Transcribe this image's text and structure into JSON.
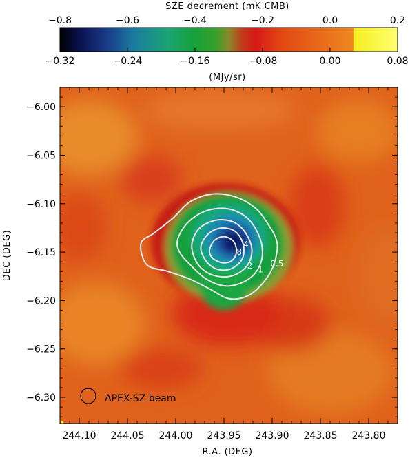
{
  "chart_data": {
    "type": "heatmap",
    "colorbar": {
      "top_label": "SZE decrement (mK CMB)",
      "top_ticks": [
        "-0.8",
        "-0.6",
        "-0.4",
        "-0.2",
        "0.0",
        "0.2"
      ],
      "top_range": [
        -0.8,
        0.2
      ],
      "bottom_ticks": [
        "-0.32",
        "-0.24",
        "-0.16",
        "-0.08",
        "0.00",
        "0.08"
      ],
      "bottom_range": [
        -0.32,
        0.08
      ],
      "bottom_label": "(MJy/sr)",
      "colors": [
        "#000000",
        "#0b1150",
        "#1a3c8a",
        "#1b7ca0",
        "#1aa572",
        "#17a03a",
        "#35a02c",
        "#8a8a28",
        "#c23a1a",
        "#d8181a",
        "#e24a12",
        "#e8661a",
        "#ee8a1e",
        "#f5ff20",
        "#ffff8a"
      ]
    },
    "xlabel": "R.A. (DEG)",
    "ylabel": "DEC (DEG)",
    "xlim": [
      244.12,
      243.77
    ],
    "ylim": [
      -6.327,
      -5.98
    ],
    "x_ticks": [
      "244.10",
      "244.05",
      "244.00",
      "243.95",
      "243.90",
      "243.85",
      "243.80"
    ],
    "y_ticks": [
      "-6.00",
      "-6.05",
      "-6.10",
      "-6.15",
      "-6.20",
      "-6.25",
      "-6.30"
    ],
    "cluster_center": {
      "ra": 243.955,
      "dec": -6.148
    },
    "contours": [
      {
        "label": "0.5",
        "level": 0.5,
        "points": [
          [
            244.036,
            -6.141
          ],
          [
            244.022,
            -6.13
          ],
          [
            244.003,
            -6.115
          ],
          [
            243.985,
            -6.098
          ],
          [
            243.962,
            -6.09
          ],
          [
            243.938,
            -6.093
          ],
          [
            243.918,
            -6.104
          ],
          [
            243.905,
            -6.12
          ],
          [
            243.895,
            -6.14
          ],
          [
            243.898,
            -6.162
          ],
          [
            243.908,
            -6.18
          ],
          [
            243.925,
            -6.195
          ],
          [
            243.945,
            -6.198
          ],
          [
            243.965,
            -6.188
          ],
          [
            243.985,
            -6.178
          ],
          [
            244.008,
            -6.17
          ],
          [
            244.03,
            -6.163
          ]
        ]
      },
      {
        "label": "1",
        "level": 1,
        "points": [
          [
            243.998,
            -6.137
          ],
          [
            243.988,
            -6.12
          ],
          [
            243.97,
            -6.108
          ],
          [
            243.948,
            -6.105
          ],
          [
            243.928,
            -6.113
          ],
          [
            243.915,
            -6.13
          ],
          [
            243.91,
            -6.15
          ],
          [
            243.915,
            -6.168
          ],
          [
            243.928,
            -6.18
          ],
          [
            243.948,
            -6.185
          ],
          [
            243.968,
            -6.178
          ],
          [
            243.985,
            -6.163
          ],
          [
            243.996,
            -6.15
          ]
        ]
      },
      {
        "label": "2",
        "level": 2,
        "points": [
          [
            243.983,
            -6.14
          ],
          [
            243.975,
            -6.125
          ],
          [
            243.958,
            -6.117
          ],
          [
            243.94,
            -6.119
          ],
          [
            243.927,
            -6.131
          ],
          [
            243.921,
            -6.148
          ],
          [
            243.926,
            -6.164
          ],
          [
            243.94,
            -6.174
          ],
          [
            243.957,
            -6.175
          ],
          [
            243.972,
            -6.168
          ],
          [
            243.981,
            -6.155
          ]
        ]
      },
      {
        "label": "4",
        "level": 4,
        "points": [
          [
            243.974,
            -6.145
          ],
          [
            243.966,
            -6.131
          ],
          [
            243.952,
            -6.125
          ],
          [
            243.938,
            -6.129
          ],
          [
            243.93,
            -6.142
          ],
          [
            243.931,
            -6.157
          ],
          [
            243.942,
            -6.167
          ],
          [
            243.956,
            -6.168
          ],
          [
            243.968,
            -6.16
          ]
        ]
      },
      {
        "label": "8",
        "level": 8,
        "points": [
          [
            243.965,
            -6.148
          ],
          [
            243.96,
            -6.138
          ],
          [
            243.95,
            -6.134
          ],
          [
            243.94,
            -6.139
          ],
          [
            243.937,
            -6.15
          ],
          [
            243.942,
            -6.159
          ],
          [
            243.952,
            -6.161
          ],
          [
            243.962,
            -6.156
          ]
        ]
      }
    ],
    "beam_label": "APEX-SZ beam"
  }
}
